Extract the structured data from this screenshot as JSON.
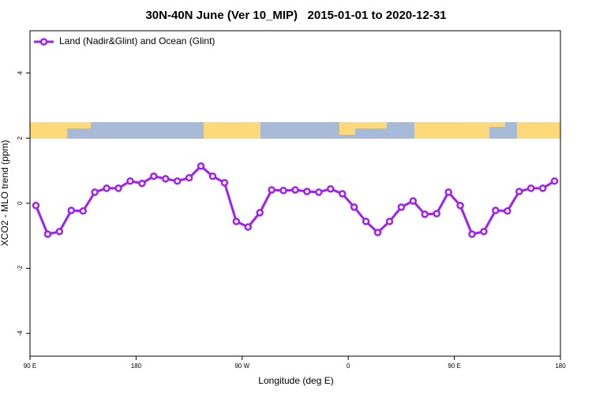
{
  "chart_data": {
    "type": "line",
    "title": "30N-40N June (Ver 10_MIP)   2015-01-01 to 2020-12-31",
    "x_label": "Longitude (deg E)",
    "y_label": "XCO2 - MLO trend (ppm)",
    "legend": "topleft",
    "xlim": [
      90,
      540
    ],
    "xticks": [
      {
        "value": 90,
        "label": "90 E"
      },
      180,
      {
        "value": 270,
        "label": "90 W"
      },
      {
        "value": 360,
        "label": "0"
      },
      {
        "value": 450,
        "label": "90 E"
      },
      {
        "value": 540,
        "label": "180"
      }
    ],
    "ylim": [
      -4.7,
      5.3
    ],
    "yticks": [
      -4,
      -2,
      0,
      2,
      4
    ],
    "x": [
      95,
      105,
      115,
      125,
      135,
      145,
      155,
      165,
      175,
      185,
      195,
      205,
      215,
      225,
      235,
      245,
      255,
      265,
      275,
      285,
      295,
      305,
      315,
      325,
      335,
      345,
      355,
      365,
      375,
      385,
      395,
      405,
      415,
      425,
      435,
      445,
      455,
      465,
      475,
      485,
      495,
      505,
      515,
      525,
      535
    ],
    "series": [
      {
        "name": "Land (Nadir&Glint) and Ocean (Glint)",
        "color": "#a020f0",
        "values": [
          -0.07,
          -0.95,
          -0.87,
          -0.22,
          -0.24,
          0.34,
          0.46,
          0.46,
          0.68,
          0.61,
          0.83,
          0.75,
          0.68,
          0.78,
          1.14,
          0.83,
          0.63,
          -0.56,
          -0.73,
          -0.29,
          0.41,
          0.39,
          0.41,
          0.36,
          0.34,
          0.44,
          0.29,
          -0.12,
          -0.56,
          -0.9,
          -0.56,
          -0.12,
          0.07,
          -0.34,
          -0.32,
          0.34,
          -0.07,
          -0.95,
          -0.87,
          -0.22,
          -0.24,
          0.36,
          0.46,
          0.46,
          0.68
        ]
      }
    ]
  }
}
